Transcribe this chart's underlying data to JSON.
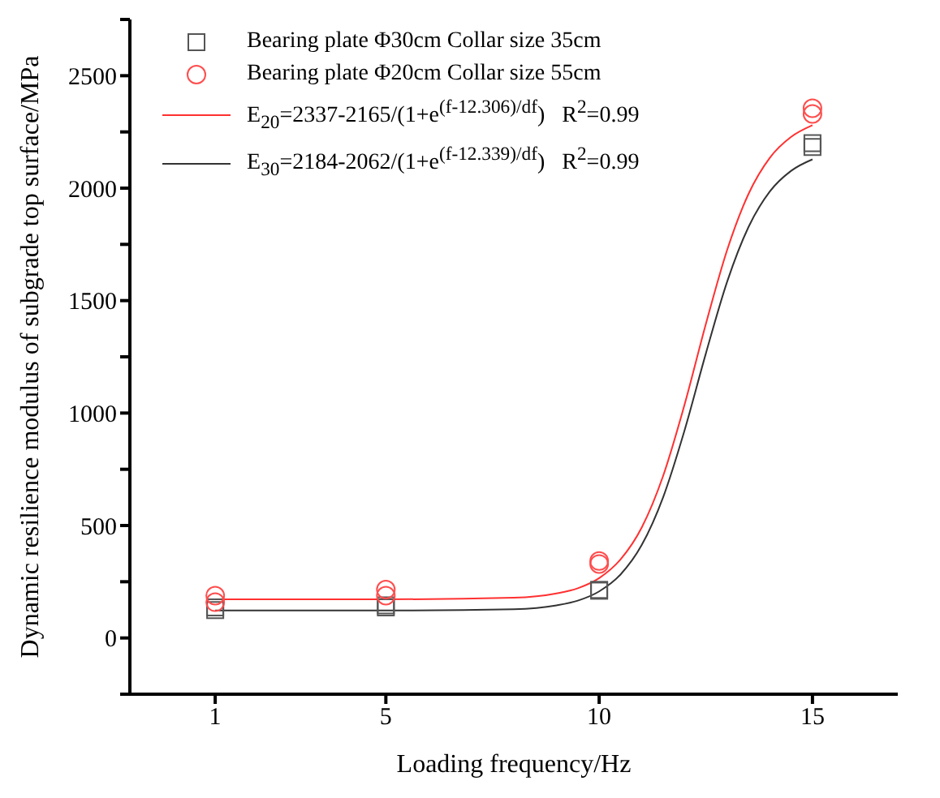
{
  "chart_data": {
    "type": "scatter",
    "xlabel": "Loading frequency/Hz",
    "ylabel": "Dynamic resilience modulus of subgrade top surface/MPa",
    "xlim": [
      -1,
      17
    ],
    "xticks": [
      1,
      5,
      10,
      15
    ],
    "ylim": [
      -250,
      2750
    ],
    "yticks": [
      {
        "value": -250,
        "label": null
      },
      0,
      {
        "value": 250,
        "label": null
      },
      500,
      {
        "value": 750,
        "label": null
      },
      1000,
      {
        "value": 1250,
        "label": null
      },
      1500,
      {
        "value": 1750,
        "label": null
      },
      2000,
      {
        "value": 2250,
        "label": null
      },
      2500,
      {
        "value": 2750,
        "label": null
      }
    ],
    "grid": false,
    "legend": "top left",
    "series": [
      {
        "name": "Bearing plate Φ30cm Collar size 35cm",
        "marker": "square",
        "color": "#555555",
        "x": [
          1,
          1,
          5,
          5,
          10,
          10,
          15,
          15
        ],
        "values": [
          124,
          136,
          136,
          145,
          214,
          210,
          2183,
          2200
        ]
      },
      {
        "name": "Bearing plate Φ20cm Collar size 55cm",
        "marker": "circle",
        "color": "#ff4d4d",
        "x": [
          1,
          1,
          5,
          5,
          10,
          10,
          15,
          15
        ],
        "values": [
          159,
          188,
          188,
          215,
          329,
          342,
          2330,
          2355
        ]
      },
      {
        "name": "E$_{20}$=2337-2165/(1+e$^{(f-12.306)/df}$)   R$^{2}$=0.99",
        "type": "line",
        "marker": "none",
        "color": "#ff3030",
        "x": [
          1,
          5,
          8,
          9,
          9.5,
          10,
          10.5,
          11,
          11.5,
          12,
          12.5,
          13,
          13.5,
          14,
          14.5,
          15
        ],
        "values": [
          172,
          172,
          179,
          198,
          221,
          266,
          349,
          492,
          721,
          1036,
          1395,
          1725,
          1974,
          2135,
          2228,
          2280
        ]
      },
      {
        "name": "E$_{30}$=2184-2062/(1+e$^{(f-12.339)/df}$)   R$^{2}$=0.99",
        "type": "line",
        "marker": "none",
        "color": "#333333",
        "x": [
          1,
          5,
          8,
          9,
          9.5,
          10,
          10.5,
          11,
          11.5,
          12,
          12.5,
          13,
          13.5,
          14,
          14.5,
          15
        ],
        "values": [
          122,
          122,
          128,
          145,
          166,
          207,
          282,
          414,
          626,
          922,
          1264,
          1584,
          1827,
          1985,
          2077,
          2128
        ]
      }
    ]
  }
}
